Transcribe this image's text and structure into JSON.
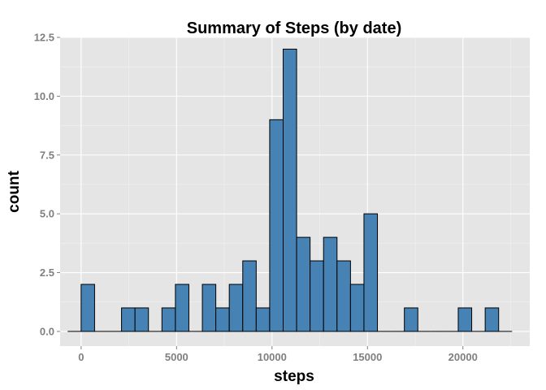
{
  "chart_data": {
    "type": "bar",
    "title": "Summary of Steps (by date)",
    "xlabel": "steps",
    "ylabel": "count",
    "bar_fill": "#4682b4",
    "bar_outline": "#000000",
    "panel_color": "#e5e5e5",
    "xlim": [
      -1100,
      23500
    ],
    "ylim": [
      -0.625,
      12.5
    ],
    "x_ticks": [
      0,
      5000,
      10000,
      15000,
      20000
    ],
    "x_tick_labels": [
      "0",
      "5000",
      "10000",
      "15000",
      "20000"
    ],
    "y_ticks": [
      0,
      2.5,
      5,
      7.5,
      10,
      12.5
    ],
    "y_tick_labels": [
      "0.0",
      "2.5",
      "5.0",
      "7.5",
      "10.0",
      "12.5"
    ],
    "grid": true,
    "binwidth": 705.5,
    "bins": [
      {
        "x0": -705.5,
        "x1": 0,
        "count": 0
      },
      {
        "x0": 0,
        "x1": 705.5,
        "count": 2
      },
      {
        "x0": 705.5,
        "x1": 1411,
        "count": 0
      },
      {
        "x0": 1411,
        "x1": 2116.5,
        "count": 0
      },
      {
        "x0": 2116.5,
        "x1": 2822,
        "count": 1
      },
      {
        "x0": 2822,
        "x1": 3527.5,
        "count": 1
      },
      {
        "x0": 3527.5,
        "x1": 4233,
        "count": 0
      },
      {
        "x0": 4233,
        "x1": 4938.5,
        "count": 1
      },
      {
        "x0": 4938.5,
        "x1": 5644,
        "count": 2
      },
      {
        "x0": 5644,
        "x1": 6349.5,
        "count": 0
      },
      {
        "x0": 6349.5,
        "x1": 7055,
        "count": 2
      },
      {
        "x0": 7055,
        "x1": 7760.5,
        "count": 1
      },
      {
        "x0": 7760.5,
        "x1": 8466,
        "count": 2
      },
      {
        "x0": 8466,
        "x1": 9171.5,
        "count": 3
      },
      {
        "x0": 9171.5,
        "x1": 9877,
        "count": 1
      },
      {
        "x0": 9877,
        "x1": 10582.5,
        "count": 9
      },
      {
        "x0": 10582.5,
        "x1": 11288,
        "count": 12
      },
      {
        "x0": 11288,
        "x1": 11993.5,
        "count": 4
      },
      {
        "x0": 11993.5,
        "x1": 12699,
        "count": 3
      },
      {
        "x0": 12699,
        "x1": 13404.5,
        "count": 4
      },
      {
        "x0": 13404.5,
        "x1": 14110,
        "count": 3
      },
      {
        "x0": 14110,
        "x1": 14815.5,
        "count": 2
      },
      {
        "x0": 14815.5,
        "x1": 15521,
        "count": 5
      },
      {
        "x0": 15521,
        "x1": 16226.5,
        "count": 0
      },
      {
        "x0": 16226.5,
        "x1": 16932,
        "count": 0
      },
      {
        "x0": 16932,
        "x1": 17637.5,
        "count": 1
      },
      {
        "x0": 17637.5,
        "x1": 18343,
        "count": 0
      },
      {
        "x0": 18343,
        "x1": 19048.5,
        "count": 0
      },
      {
        "x0": 19048.5,
        "x1": 19754,
        "count": 0
      },
      {
        "x0": 19754,
        "x1": 20459.5,
        "count": 1
      },
      {
        "x0": 20459.5,
        "x1": 21165,
        "count": 0
      },
      {
        "x0": 21165,
        "x1": 21870.5,
        "count": 1
      },
      {
        "x0": 21870.5,
        "x1": 22576,
        "count": 0
      }
    ]
  }
}
